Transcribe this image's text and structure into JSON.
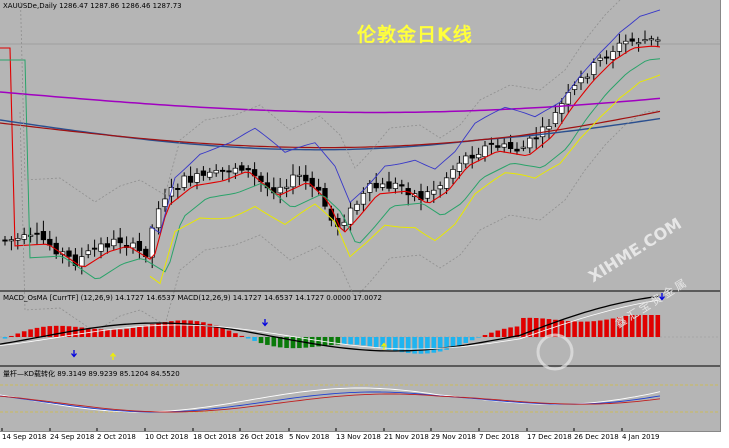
{
  "window": {
    "symbol_header": "XAUUSDe,Daily  1286.47 1287.86 1286.46 1287.73",
    "overlay_title": "伦敦金日K线"
  },
  "indicators": {
    "macd_header": "MACD_OsMA [CurrTF] (12,26,9) 14.1727 14.6537 MACD(12,26,9) 14.1727 14.6537 14.1727 0.0000 17.0072",
    "kd_header": "量杆—KD载转化 89.3149 89.9239 85.1204 84.5520"
  },
  "x_axis": {
    "labels": [
      "14 Sep 2018",
      "24 Sep 2018",
      "2 Oct 2018",
      "10 Oct 2018",
      "18 Oct 2018",
      "26 Oct 2018",
      "5 Nov 2018",
      "13 Nov 2018",
      "21 Nov 2018",
      "29 Nov 2018",
      "7 Dec 2018",
      "17 Dec 2018",
      "26 Dec 2018",
      "4 Jan 2019"
    ]
  },
  "watermark": {
    "text": "XIHME.COM",
    "sub": "鑫汇宝贵金属"
  },
  "colors": {
    "background": "#b5b5b5",
    "bull": "#ffffff",
    "bear": "#000000",
    "ma_red": "#e00000",
    "ma_green": "#2aa36a",
    "ma_blue": "#2a4f8f",
    "ma_darkred": "#a01010",
    "ma_purple": "#a000c0",
    "band_yellow": "#e8e800",
    "band_blue": "#3838c8",
    "hist_red": "#e00000",
    "hist_blue": "#1eb4f0",
    "hist_green": "#0a7a0a"
  }
}
